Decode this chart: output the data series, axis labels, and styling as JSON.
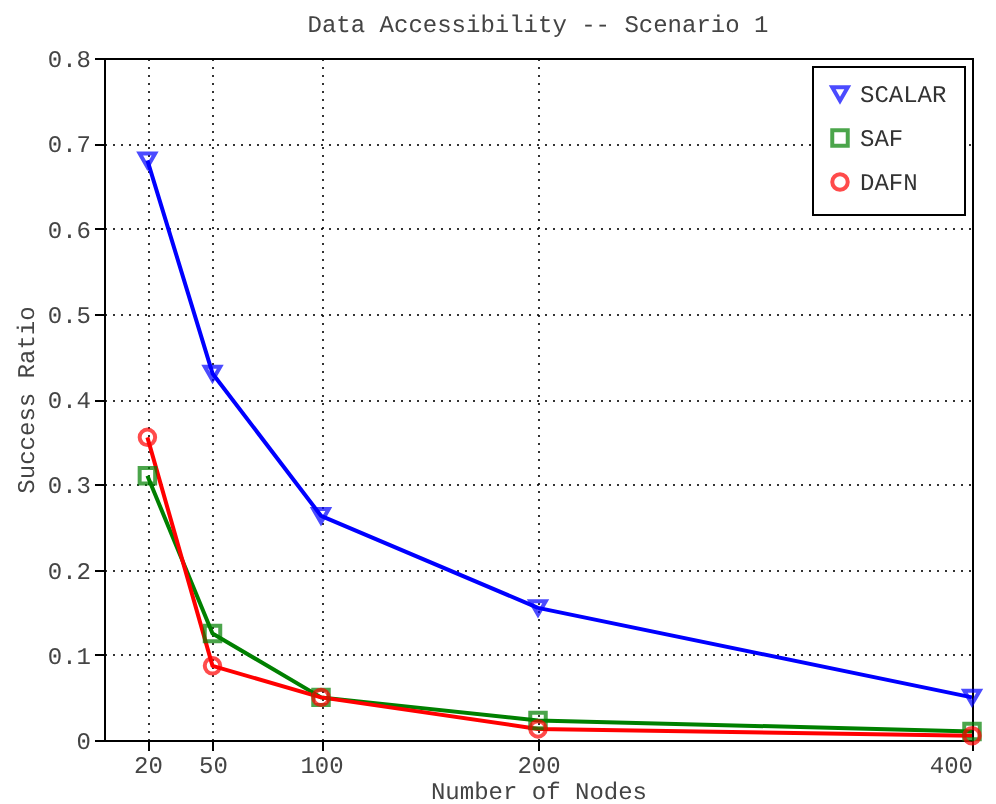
{
  "chart_data": {
    "type": "line",
    "title": "Data Accessibility -- Scenario 1",
    "xlabel": "Number of Nodes",
    "ylabel": "Success Ratio",
    "x": [
      20,
      50,
      100,
      200,
      400
    ],
    "series": [
      {
        "name": "SCALAR",
        "color": "#0000ff",
        "marker": "triangle",
        "values": [
          0.68,
          0.43,
          0.263,
          0.155,
          0.05
        ]
      },
      {
        "name": "SAF",
        "color": "#008000",
        "marker": "square",
        "values": [
          0.31,
          0.125,
          0.05,
          0.023,
          0.01
        ]
      },
      {
        "name": "DAFN",
        "color": "#ff0000",
        "marker": "circle",
        "values": [
          0.355,
          0.087,
          0.05,
          0.013,
          0.005
        ]
      }
    ],
    "xlim": [
      0,
      400
    ],
    "xticks": [
      20,
      50,
      100,
      200,
      400
    ],
    "ylim": [
      0,
      0.8
    ],
    "yticks": [
      0,
      0.1,
      0.2,
      0.3,
      0.4,
      0.5,
      0.6,
      0.7,
      0.8
    ],
    "grid": true,
    "legend": "top right",
    "line_style": "solid"
  }
}
